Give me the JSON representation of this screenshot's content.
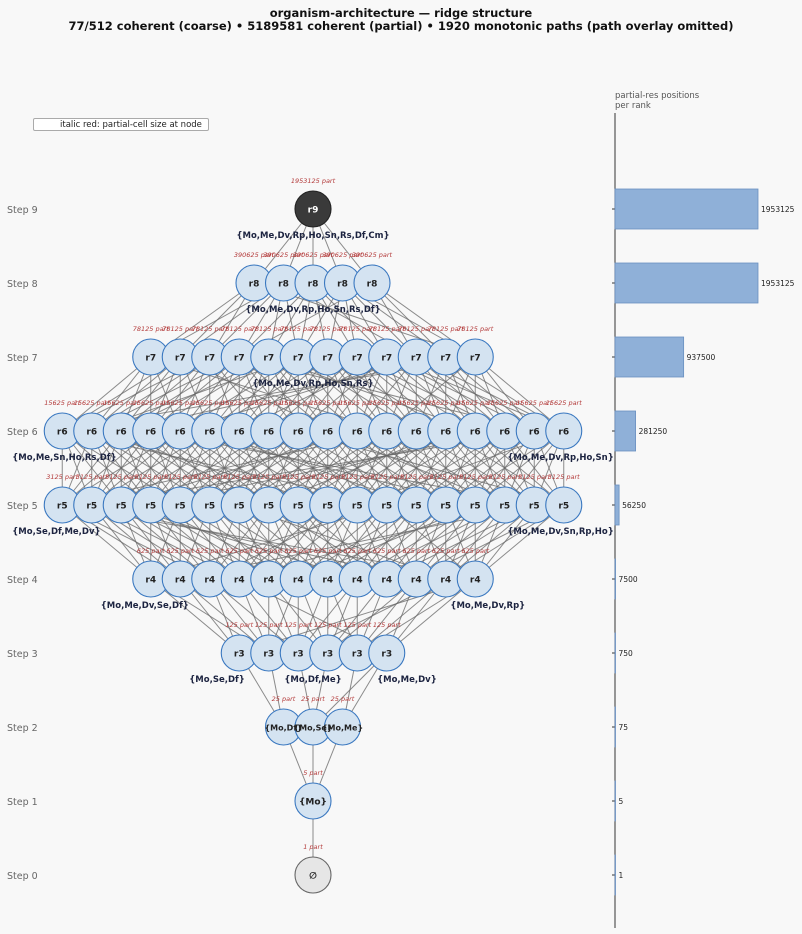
{
  "title": {
    "line1": "organism-architecture — ridge structure",
    "line2": "77/512 coherent (coarse)  •  5189581 coherent (partial)  •  1920 monotonic paths (path overlay omitted)"
  },
  "legend": {
    "text": "italic red: partial-cell size at node"
  },
  "side_panel": {
    "title_line1": "partial-res positions",
    "title_line2": "per rank"
  },
  "colors": {
    "node_fill": "#d4e3f1",
    "node_stroke": "#3a78c0",
    "edge": "#666666",
    "partial_text": "#b33a3a",
    "bar_fill": "#8fb0d8",
    "bar_stroke": "#6a90c0",
    "root_fill": "#3a3a3a",
    "empty_fill": "#e6e6e6"
  },
  "steps": [
    {
      "label": "Step 0",
      "node_label": "∅",
      "node_count": 1,
      "partial": "1 part",
      "set_labels": [],
      "bar_label": "1"
    },
    {
      "label": "Step 1",
      "node_label": "{Mo}",
      "node_count": 1,
      "partial": "5 part",
      "set_labels": [],
      "bar_label": "5"
    },
    {
      "label": "Step 2",
      "node_label": "",
      "node_count": 3,
      "partial": "25 part",
      "inner_labels": [
        "{Mo,Df}",
        "{Mo,Se}",
        "{Mo,Me}"
      ],
      "set_labels": [],
      "bar_label": "75"
    },
    {
      "label": "Step 3",
      "node_label": "r3",
      "node_count": 6,
      "partial": "125 part",
      "set_labels": [
        "{Mo,Se,Df}",
        "{Mo,Df,Me}",
        "{Mo,Me,Dv}"
      ],
      "bar_label": "750"
    },
    {
      "label": "Step 4",
      "node_label": "r4",
      "node_count": 12,
      "partial": "625 part",
      "set_labels": [
        "{Mo,Me,Dv,Se,Df}",
        "{Mo,Me,Dv,Rp}"
      ],
      "bar_label": "7500"
    },
    {
      "label": "Step 5",
      "node_label": "r5",
      "node_count": 18,
      "partial": "3125 part",
      "set_labels": [
        "{Mo,Se,Df,Me,Dv}",
        "{Mo,Me,Dv,Sn,Rp,Ho}"
      ],
      "bar_label": "56250"
    },
    {
      "label": "Step 6",
      "node_label": "r6",
      "node_count": 18,
      "partial": "15625 part",
      "set_labels": [
        "{Mo,Me,Sn,Ho,Rs,Df}",
        "{Mo,Me,Dv,Rp,Ho,Sn}"
      ],
      "bar_label": "281250"
    },
    {
      "label": "Step 7",
      "node_label": "r7",
      "node_count": 12,
      "partial": "78125 part",
      "set_labels": [
        "{Mo,Me,Dv,Rp,Ho,Sn,Rs}"
      ],
      "bar_label": "937500"
    },
    {
      "label": "Step 8",
      "node_label": "r8",
      "node_count": 5,
      "partial": "390625 part",
      "set_labels": [
        "{Mo,Me,Dv,Rp,Ho,Sn,Rs,Df}"
      ],
      "bar_label": "1953125"
    },
    {
      "label": "Step 9",
      "node_label": "r9",
      "node_count": 1,
      "partial": "1953125 part",
      "set_labels": [
        "{Mo,Me,Dv,Rp,Ho,Sn,Rs,Df,Cm}"
      ],
      "bar_label": "1953125"
    }
  ],
  "chart_data": {
    "type": "bar",
    "orientation": "horizontal",
    "title": "partial-res positions per rank",
    "categories": [
      "Step 0",
      "Step 1",
      "Step 2",
      "Step 3",
      "Step 4",
      "Step 5",
      "Step 6",
      "Step 7",
      "Step 8",
      "Step 9"
    ],
    "values": [
      1,
      5,
      75,
      750,
      7500,
      56250,
      281250,
      937500,
      1953125,
      1953125
    ],
    "xlim": [
      0,
      1953125
    ]
  }
}
